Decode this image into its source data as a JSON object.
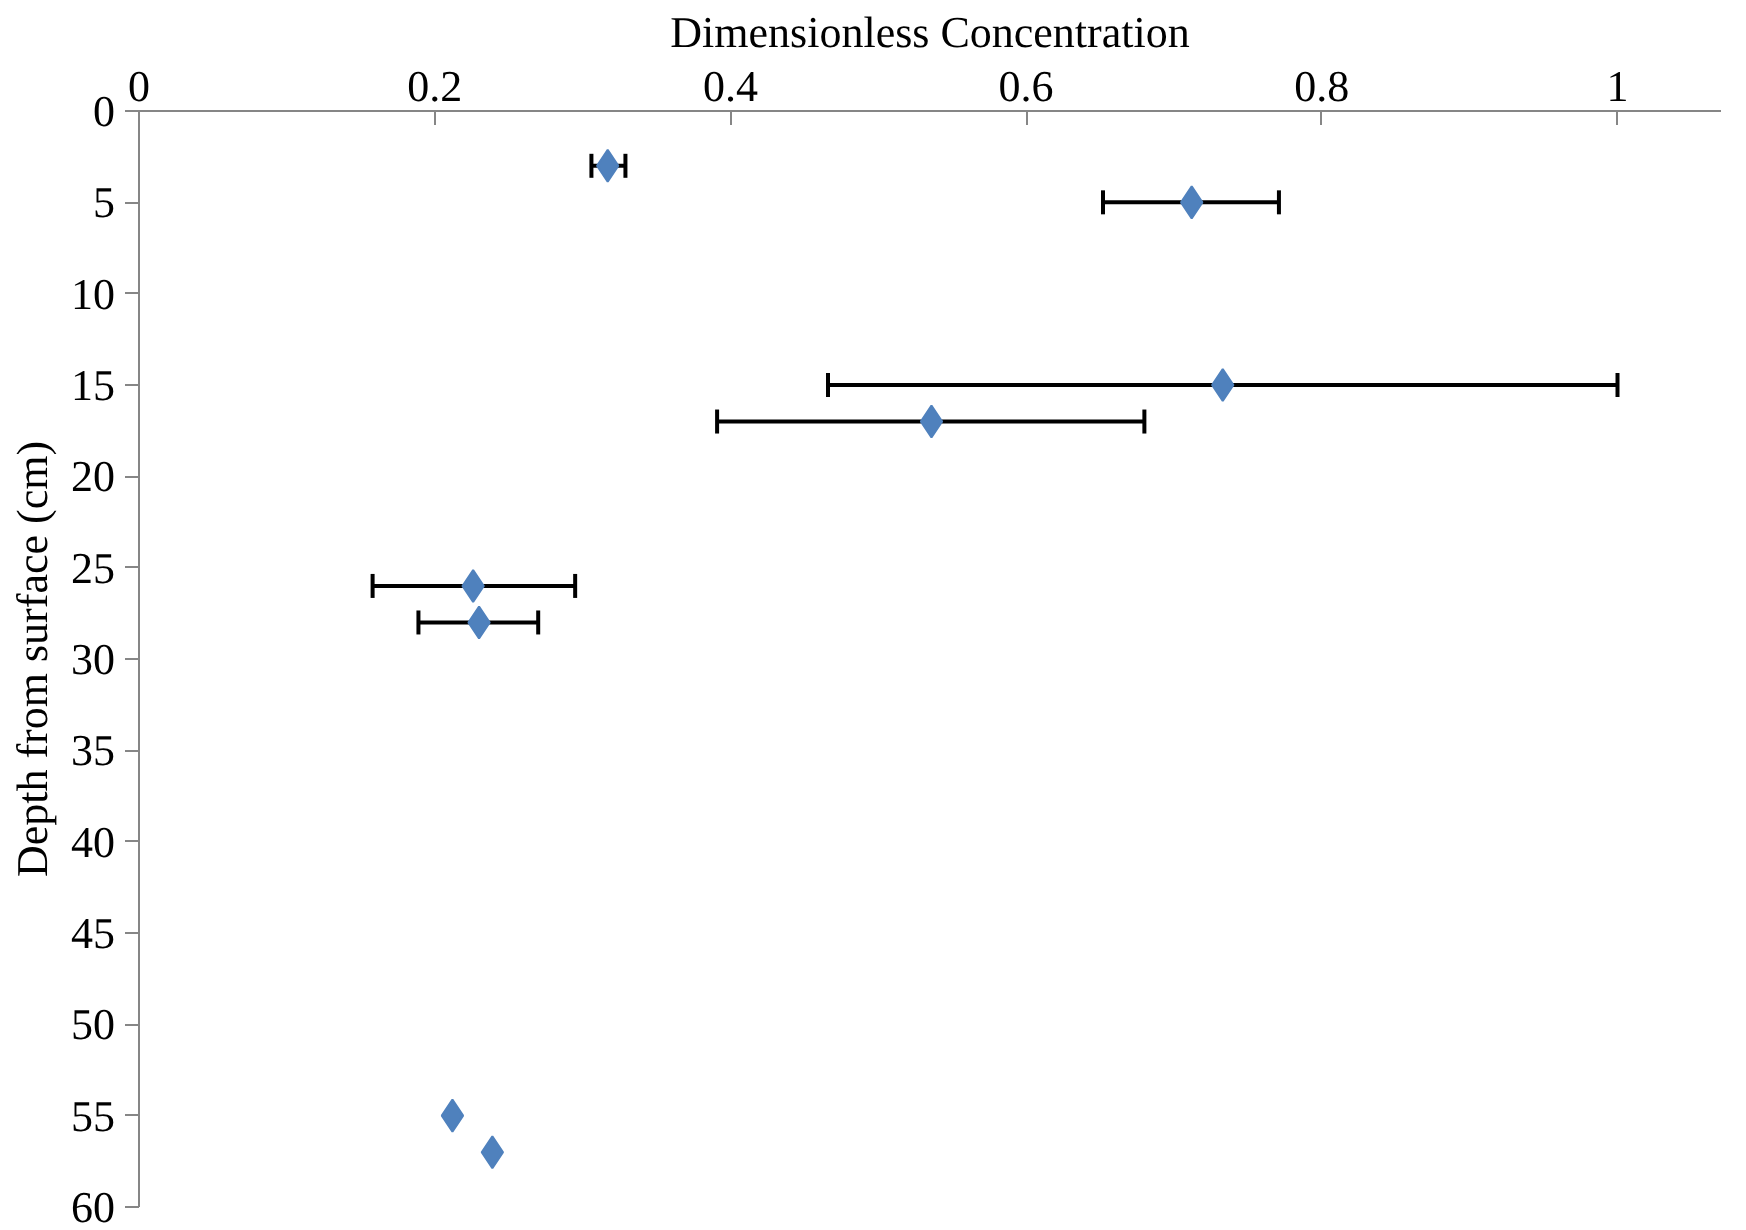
{
  "chart_data": {
    "type": "scatter",
    "xlabel": "Dimensionless Concentration",
    "ylabel": "Depth from surface (cm)",
    "x": [
      0.317,
      0.712,
      0.733,
      0.536,
      0.226,
      0.23,
      0.212,
      0.239
    ],
    "series": [
      {
        "color": "#4f81bd",
        "values": [
          3,
          5,
          15,
          17,
          26,
          28,
          55,
          57
        ],
        "xerrors": [
          [
            0.306,
            0.329
          ],
          [
            0.652,
            0.771
          ],
          [
            0.466,
            1.0
          ],
          [
            0.391,
            0.68
          ],
          [
            0.158,
            0.295
          ],
          [
            0.189,
            0.27
          ],
          null,
          null
        ]
      }
    ],
    "xlim": [
      0,
      1.07
    ],
    "xticks": [
      0,
      0.2,
      0.4,
      0.6,
      0.8,
      1
    ],
    "ylim": [
      60,
      0
    ],
    "yticks": [
      0,
      5,
      10,
      15,
      20,
      25,
      30,
      35,
      40,
      45,
      50,
      55,
      60
    ],
    "marker": "diamond",
    "grid": false
  }
}
